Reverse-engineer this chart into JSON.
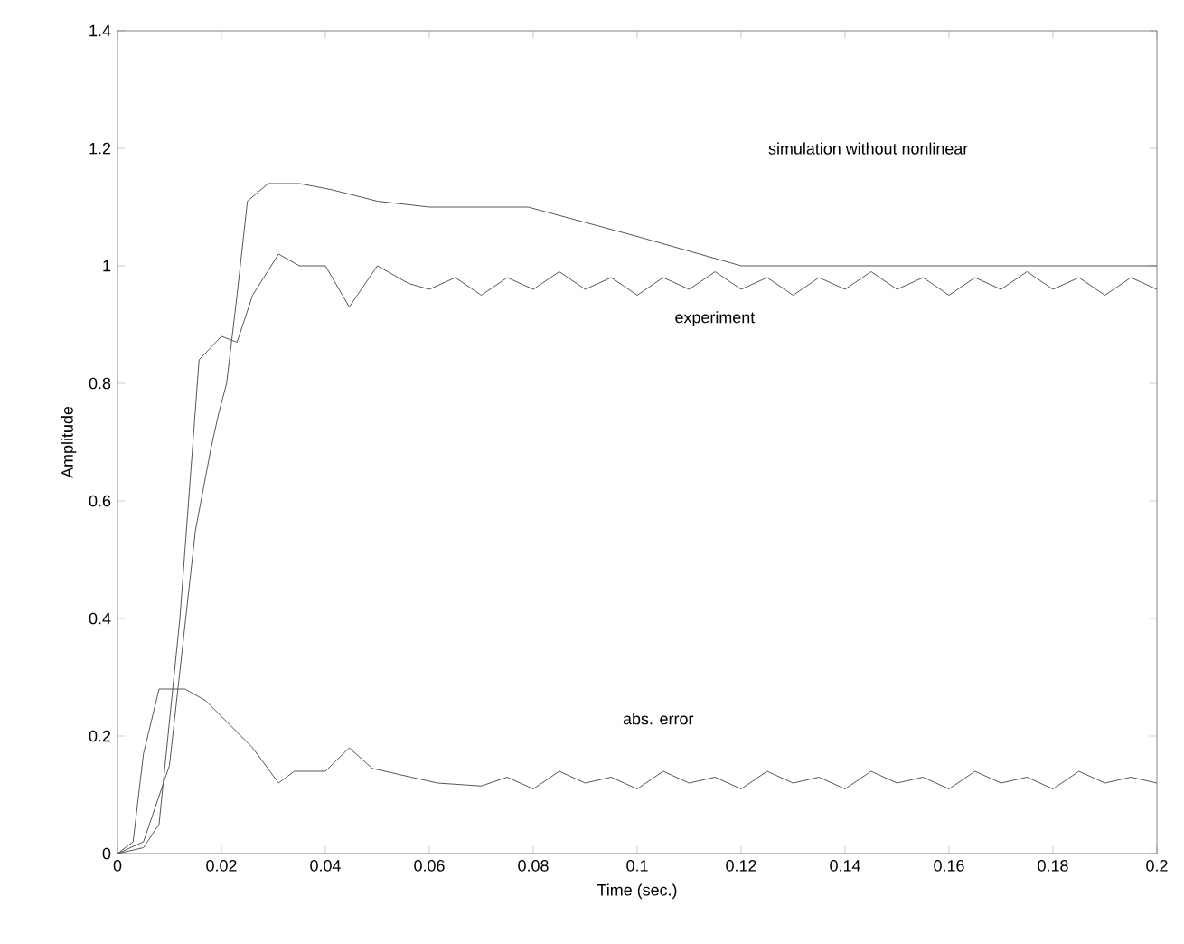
{
  "chart_data": {
    "type": "line",
    "xlabel": "Time (sec.)",
    "ylabel": "Amplitude",
    "xlim": [
      0,
      0.2
    ],
    "ylim": [
      0,
      1.4
    ],
    "xticks": [
      0,
      0.02,
      0.04,
      0.06,
      0.08,
      0.1,
      0.12,
      0.14,
      0.16,
      0.18,
      0.2
    ],
    "yticks": [
      0,
      0.2,
      0.4,
      0.6,
      0.8,
      1,
      1.2,
      1.4
    ],
    "grid": false,
    "marker": "none",
    "line_style": "solid",
    "series": [
      {
        "color": "#555555",
        "x": [
          0,
          0.005,
          0.01,
          0.015,
          0.018,
          0.0195,
          0.021,
          0.023,
          0.025,
          0.029,
          0.035,
          0.041,
          0.05,
          0.06,
          0.079,
          0.1,
          0.12,
          0.2
        ],
        "values": [
          0,
          0.02,
          0.15,
          0.55,
          0.69,
          0.75,
          0.8,
          0.95,
          1.11,
          1.14,
          1.14,
          1.13,
          1.11,
          1.1,
          1.1,
          1.05,
          1.0,
          1.0
        ]
      },
      {
        "color": "#555555",
        "x": [
          0,
          0.005,
          0.008,
          0.012,
          0.0157,
          0.02,
          0.023,
          0.026,
          0.031,
          0.035,
          0.04,
          0.0446,
          0.05,
          0.056,
          0.06,
          0.065,
          0.07,
          0.075,
          0.08,
          0.085,
          0.09,
          0.095,
          0.1,
          0.105,
          0.11,
          0.115,
          0.12,
          0.125,
          0.13,
          0.135,
          0.14,
          0.145,
          0.15,
          0.155,
          0.16,
          0.165,
          0.17,
          0.175,
          0.18,
          0.185,
          0.19,
          0.195,
          0.2
        ],
        "values": [
          0,
          0.01,
          0.05,
          0.4,
          0.84,
          0.88,
          0.87,
          0.95,
          1.02,
          1.0,
          1.0,
          0.93,
          1.0,
          0.97,
          0.96,
          0.98,
          0.95,
          0.98,
          0.96,
          0.99,
          0.96,
          0.98,
          0.95,
          0.98,
          0.96,
          0.99,
          0.96,
          0.98,
          0.95,
          0.98,
          0.96,
          0.99,
          0.96,
          0.98,
          0.95,
          0.98,
          0.96,
          0.99,
          0.96,
          0.98,
          0.95,
          0.98,
          0.96
        ]
      },
      {
        "color": "#555555",
        "x": [
          0,
          0.003,
          0.005,
          0.008,
          0.013,
          0.017,
          0.0215,
          0.026,
          0.031,
          0.034,
          0.04,
          0.0446,
          0.049,
          0.054,
          0.0616,
          0.07,
          0.075,
          0.08,
          0.085,
          0.09,
          0.095,
          0.1,
          0.105,
          0.11,
          0.115,
          0.12,
          0.125,
          0.13,
          0.135,
          0.14,
          0.145,
          0.15,
          0.155,
          0.16,
          0.165,
          0.17,
          0.175,
          0.18,
          0.185,
          0.19,
          0.195,
          0.2
        ],
        "values": [
          0,
          0.02,
          0.17,
          0.28,
          0.28,
          0.26,
          0.22,
          0.18,
          0.12,
          0.14,
          0.14,
          0.18,
          0.145,
          0.135,
          0.12,
          0.115,
          0.13,
          0.11,
          0.14,
          0.12,
          0.13,
          0.11,
          0.14,
          0.12,
          0.13,
          0.11,
          0.14,
          0.12,
          0.13,
          0.11,
          0.14,
          0.12,
          0.13,
          0.11,
          0.14,
          0.12,
          0.13,
          0.11,
          0.14,
          0.12,
          0.13,
          0.12
        ]
      }
    ],
    "annotations": [
      "simulation without nonlinear",
      "experiment",
      "abs. error"
    ]
  }
}
